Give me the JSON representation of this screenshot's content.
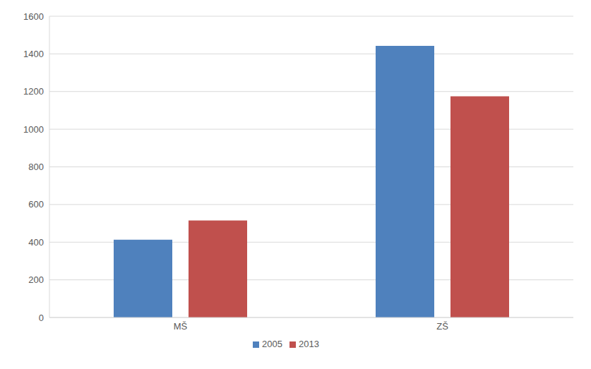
{
  "chart_data": {
    "type": "bar",
    "categories": [
      "MŠ",
      "ZŠ"
    ],
    "series": [
      {
        "name": "2005",
        "color": "#4f81bd",
        "values": [
          413,
          1443
        ]
      },
      {
        "name": "2013",
        "color": "#c0504d",
        "values": [
          515,
          1175
        ]
      }
    ],
    "ylim": [
      0,
      1600
    ],
    "yticks": [
      0,
      200,
      400,
      600,
      800,
      1000,
      1200,
      1400,
      1600
    ],
    "grid": true,
    "legend": "bottom"
  }
}
